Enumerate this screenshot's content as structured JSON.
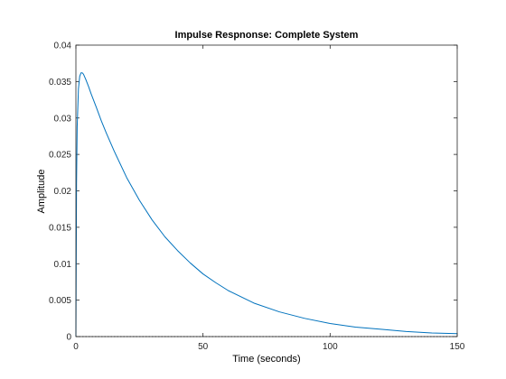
{
  "chart_data": {
    "type": "line",
    "title": "Impulse Respnonse: Complete System",
    "xlabel": "Time (seconds)",
    "ylabel": "Amplitude",
    "xlim": [
      0,
      150
    ],
    "ylim": [
      0,
      0.04
    ],
    "xticks": [
      "0",
      "50",
      "100",
      "150"
    ],
    "yticks": [
      "0",
      "0.005",
      "0.01",
      "0.015",
      "0.02",
      "0.025",
      "0.03",
      "0.035",
      "0.04"
    ],
    "grid": false,
    "legend": "none",
    "series": [
      {
        "color": "#0072BD",
        "x": [
          0,
          0.25,
          0.5,
          1,
          1.5,
          2,
          2.5,
          3,
          3.5,
          4,
          5,
          6,
          8,
          10,
          12,
          15,
          20,
          25,
          30,
          35,
          40,
          45,
          50,
          55,
          60,
          70,
          80,
          90,
          100,
          110,
          120,
          130,
          140,
          150
        ],
        "y": [
          0,
          0.021,
          0.0288,
          0.034,
          0.0357,
          0.0362,
          0.0362,
          0.036,
          0.0356,
          0.0352,
          0.0343,
          0.0333,
          0.0315,
          0.0296,
          0.0279,
          0.0255,
          0.0218,
          0.0187,
          0.016,
          0.0137,
          0.0118,
          0.0101,
          0.0086,
          0.0074,
          0.0063,
          0.0046,
          0.0034,
          0.0025,
          0.0018,
          0.0013,
          0.001,
          0.0007,
          0.0005,
          0.0004
        ]
      }
    ]
  }
}
